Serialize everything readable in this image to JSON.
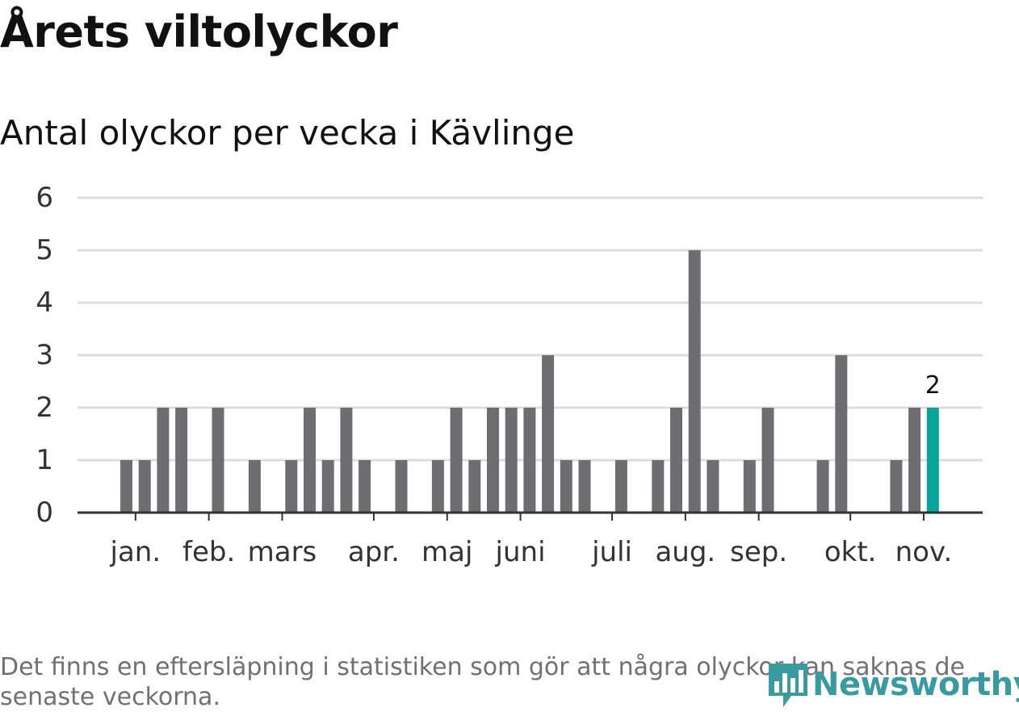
{
  "title": "Årets viltolyckor",
  "subtitle": "Antal olyckor per vecka i Kävlinge",
  "footnote": "Det finns en eftersläpning i statistiken som gör att några olyckor kan saknas de senaste veckorna.",
  "brand": {
    "name": "Newsworthy",
    "icon": "newsworthy-logo-icon"
  },
  "colors": {
    "bar": "#6e6d72",
    "highlight": "#0aa39a",
    "grid": "#dcdcdc",
    "axis": "#333333",
    "brand": "#3a9aa0"
  },
  "chart_data": {
    "type": "bar",
    "xlabel": "",
    "ylabel": "",
    "ylim": [
      0,
      6
    ],
    "yticks": [
      0,
      1,
      2,
      3,
      4,
      5,
      6
    ],
    "grid": true,
    "weeks": [
      1,
      2,
      3,
      4,
      5,
      6,
      7,
      8,
      9,
      10,
      11,
      12,
      13,
      14,
      15,
      16,
      17,
      18,
      19,
      20,
      21,
      22,
      23,
      24,
      25,
      26,
      27,
      28,
      29,
      30,
      31,
      32,
      33,
      34,
      35,
      36,
      37,
      38,
      39,
      40,
      41,
      42,
      43,
      44,
      45,
      46
    ],
    "values": [
      0,
      0,
      1,
      1,
      2,
      2,
      0,
      2,
      0,
      1,
      0,
      1,
      2,
      1,
      2,
      1,
      0,
      1,
      0,
      1,
      2,
      1,
      2,
      2,
      2,
      3,
      1,
      1,
      0,
      1,
      0,
      1,
      2,
      5,
      1,
      0,
      1,
      2,
      0,
      0,
      1,
      3,
      0,
      0,
      1,
      2
    ],
    "highlight": {
      "week": 47,
      "value": 2,
      "label": "2"
    },
    "month_labels": [
      {
        "label": "jan.",
        "week": 3.5
      },
      {
        "label": "feb.",
        "week": 7.5
      },
      {
        "label": "mars",
        "week": 11.5
      },
      {
        "label": "apr.",
        "week": 16.5
      },
      {
        "label": "maj",
        "week": 20.5
      },
      {
        "label": "juni",
        "week": 24.5
      },
      {
        "label": "juli",
        "week": 29.5
      },
      {
        "label": "aug.",
        "week": 33.5
      },
      {
        "label": "sep.",
        "week": 37.5
      },
      {
        "label": "okt.",
        "week": 42.5
      },
      {
        "label": "nov.",
        "week": 46.5
      }
    ]
  }
}
